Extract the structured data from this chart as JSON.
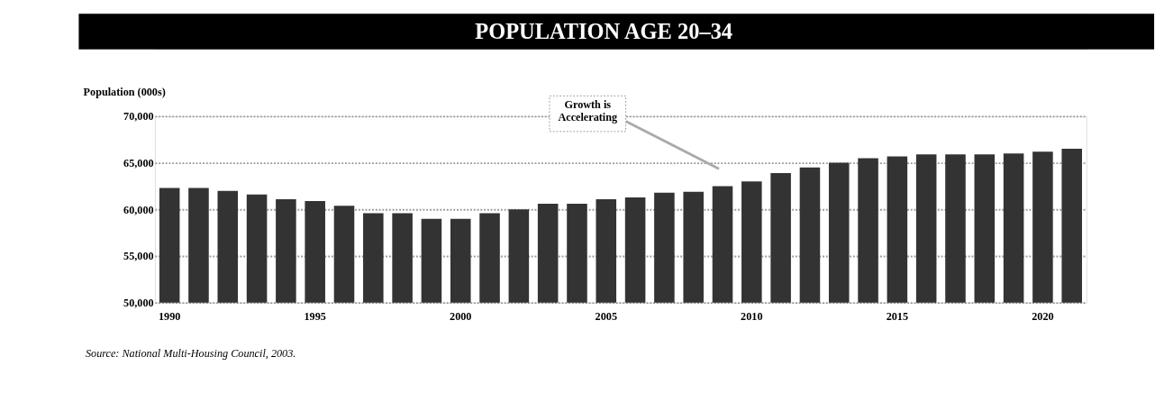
{
  "chart_data": {
    "type": "bar",
    "title": "POPULATION AGE 20–34",
    "ylabel": "Population (000s)",
    "categories": [
      "1990",
      null,
      null,
      null,
      null,
      "1995",
      null,
      null,
      null,
      null,
      "2000",
      null,
      null,
      null,
      null,
      "2005",
      null,
      null,
      null,
      null,
      "2010",
      null,
      null,
      null,
      null,
      "2015",
      null,
      null,
      null,
      null,
      "2020",
      null
    ],
    "values": [
      62300,
      62300,
      62000,
      61600,
      61100,
      60900,
      60400,
      59600,
      59600,
      59000,
      59000,
      59600,
      60000,
      60600,
      60600,
      61100,
      61300,
      61800,
      61900,
      62500,
      63000,
      63900,
      64500,
      65000,
      65500,
      65700,
      65900,
      65900,
      65900,
      66000,
      66200,
      66500
    ],
    "color": "#333333",
    "ylim": [
      50000,
      70000
    ],
    "yticks": [
      {
        "value": 50000,
        "label": "50,000"
      },
      {
        "value": 55000,
        "label": "55,000"
      },
      {
        "value": 60000,
        "label": "60,000"
      },
      {
        "value": 65000,
        "label": "65,000"
      },
      {
        "value": 70000,
        "label": "70,000"
      }
    ],
    "grid": "y",
    "annotations": [
      "Growth is\nAccelerating",
      "Source: National Multi-Housing Council, 2003."
    ]
  }
}
